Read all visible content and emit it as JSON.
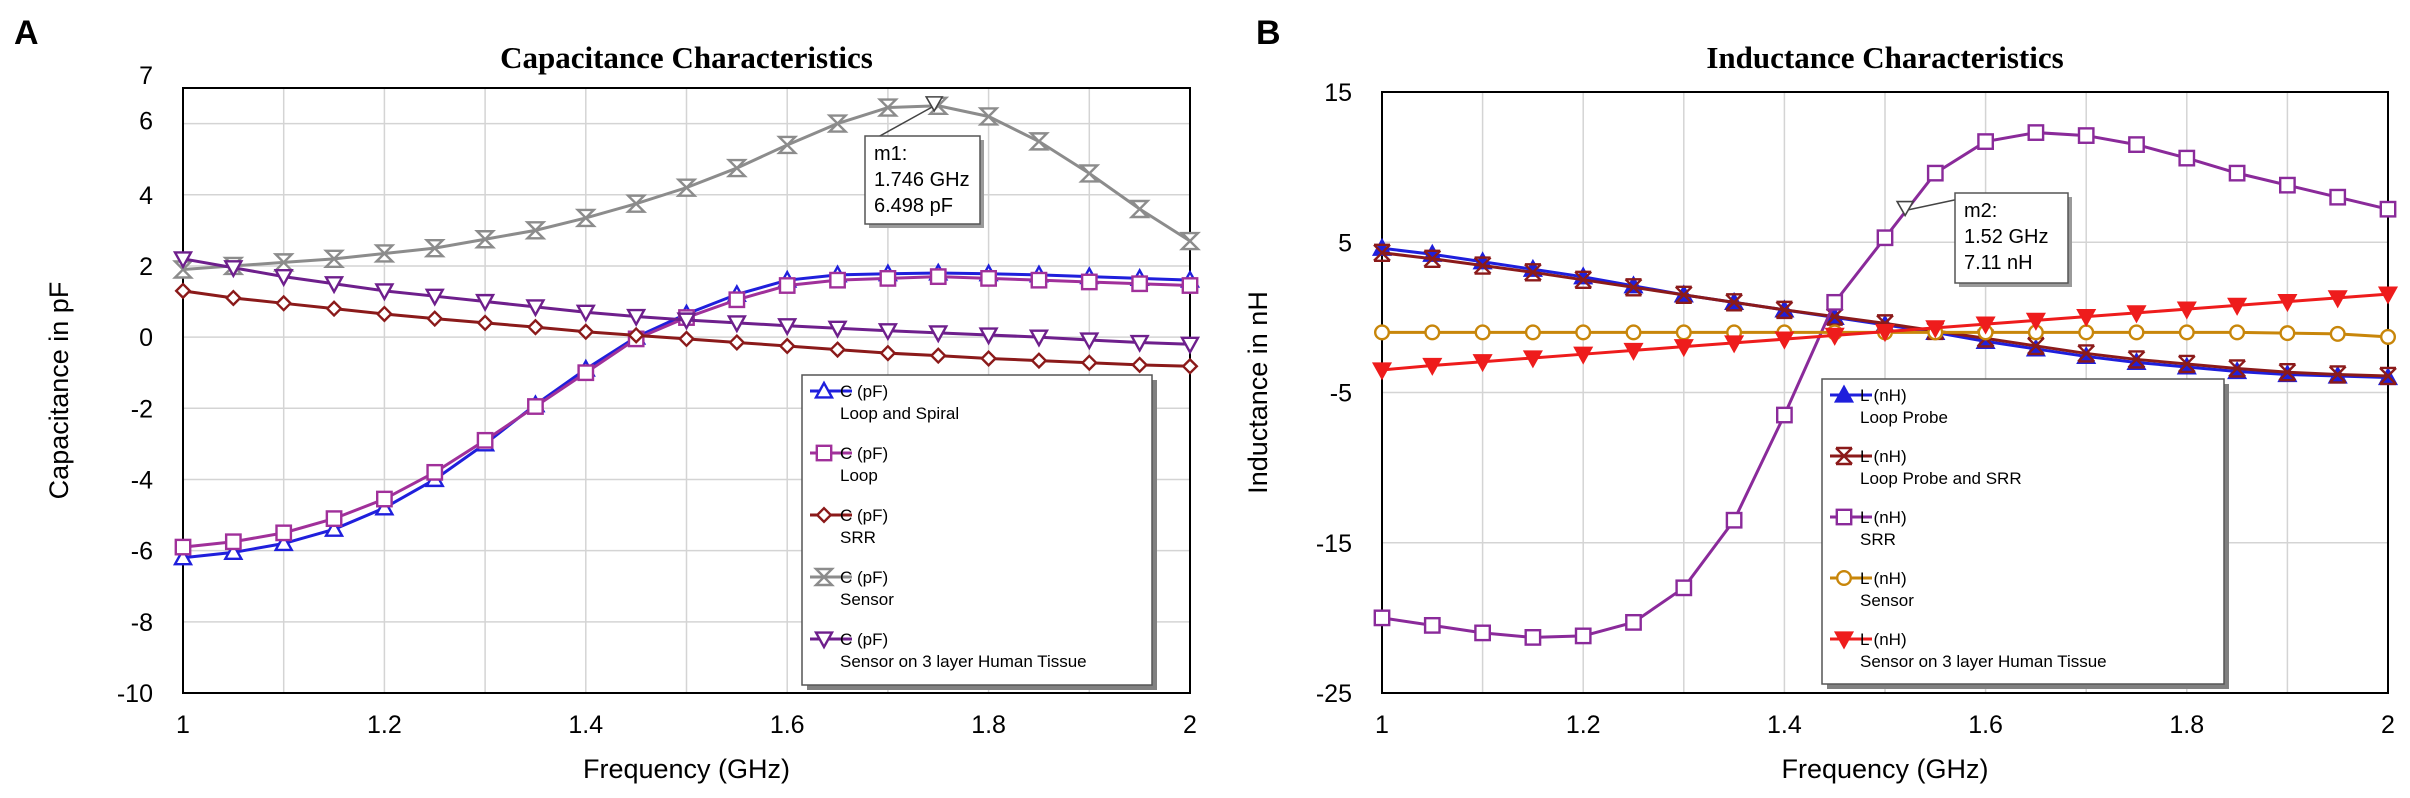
{
  "panels": [
    {
      "letter": "A"
    },
    {
      "letter": "B"
    }
  ],
  "chart_data": [
    {
      "type": "line",
      "title": "Capacitance Characteristics",
      "xlabel": "Frequency (GHz)",
      "ylabel": "Capacitance in pF",
      "xlim": [
        1,
        2
      ],
      "ylim": [
        -10,
        7
      ],
      "xticks": [
        1,
        1.2,
        1.4,
        1.6,
        1.8,
        2
      ],
      "xtick_labels": [
        "1",
        "1.2",
        "1.4",
        "1.6",
        "1.8",
        "2"
      ],
      "yticks": [
        -10,
        -8,
        -6,
        -4,
        -2,
        0,
        2,
        4,
        6,
        7
      ],
      "ytick_labels": [
        "-10",
        "-8",
        "-6",
        "-4",
        "-2",
        "0",
        "2",
        "4",
        "6",
        "7"
      ],
      "grid": true,
      "x": [
        1.0,
        1.05,
        1.1,
        1.15,
        1.2,
        1.25,
        1.3,
        1.35,
        1.4,
        1.45,
        1.5,
        1.55,
        1.6,
        1.65,
        1.7,
        1.75,
        1.8,
        1.85,
        1.9,
        1.95,
        2.0
      ],
      "series": [
        {
          "name": "C (pF)",
          "desc": "Loop and Spiral",
          "color": "#1f1fdc",
          "marker": "triangle-up",
          "filled": false,
          "values": [
            -6.2,
            -6.05,
            -5.8,
            -5.4,
            -4.8,
            -4.0,
            -3.0,
            -1.9,
            -0.9,
            0.0,
            0.65,
            1.2,
            1.6,
            1.75,
            1.78,
            1.8,
            1.78,
            1.75,
            1.7,
            1.65,
            1.6
          ]
        },
        {
          "name": "C (pF)",
          "desc": "Loop",
          "color": "#a0309a",
          "marker": "square",
          "filled": false,
          "values": [
            -5.9,
            -5.75,
            -5.5,
            -5.1,
            -4.55,
            -3.8,
            -2.9,
            -1.95,
            -1.0,
            -0.05,
            0.55,
            1.05,
            1.45,
            1.6,
            1.65,
            1.7,
            1.65,
            1.6,
            1.55,
            1.5,
            1.45
          ]
        },
        {
          "name": "C (pF)",
          "desc": "SRR",
          "color": "#8b1a1a",
          "marker": "diamond",
          "filled": false,
          "values": [
            1.3,
            1.1,
            0.95,
            0.8,
            0.65,
            0.52,
            0.4,
            0.28,
            0.15,
            0.05,
            -0.05,
            -0.15,
            -0.25,
            -0.35,
            -0.45,
            -0.52,
            -0.6,
            -0.66,
            -0.72,
            -0.78,
            -0.82
          ]
        },
        {
          "name": "C (pF)",
          "desc": "Sensor",
          "color": "#8c8c8c",
          "marker": "hourglass",
          "filled": false,
          "values": [
            1.9,
            2.0,
            2.1,
            2.2,
            2.35,
            2.5,
            2.75,
            3.0,
            3.35,
            3.75,
            4.2,
            4.75,
            5.4,
            6.0,
            6.45,
            6.5,
            6.2,
            5.5,
            4.6,
            3.6,
            2.7
          ]
        },
        {
          "name": "C (pF)",
          "desc": "Sensor on 3 layer Human Tissue",
          "color": "#6e1f8c",
          "marker": "triangle-down",
          "filled": false,
          "values": [
            2.2,
            1.95,
            1.7,
            1.5,
            1.3,
            1.15,
            1.0,
            0.85,
            0.7,
            0.58,
            0.48,
            0.4,
            0.32,
            0.25,
            0.18,
            0.12,
            0.06,
            0.0,
            -0.08,
            -0.15,
            -0.2
          ]
        }
      ],
      "annotation": {
        "name": "m1:",
        "x_text": "1.746 GHz",
        "y_text": "6.498 pF",
        "x": 1.746,
        "y": 6.498
      }
    },
    {
      "type": "line",
      "title": "Inductance Characteristics",
      "xlabel": "Frequency (GHz)",
      "ylabel": "Inductance in nH",
      "xlim": [
        1,
        2
      ],
      "ylim": [
        -25,
        15
      ],
      "xticks": [
        1,
        1.2,
        1.4,
        1.6,
        1.8,
        2
      ],
      "xtick_labels": [
        "1",
        "1.2",
        "1.4",
        "1.6",
        "1.8",
        "2"
      ],
      "yticks": [
        -25,
        -15,
        -5,
        5,
        15
      ],
      "ytick_labels": [
        "-25",
        "-15",
        "-5",
        "5",
        "15"
      ],
      "grid": true,
      "x": [
        1.0,
        1.05,
        1.1,
        1.15,
        1.2,
        1.25,
        1.3,
        1.35,
        1.4,
        1.45,
        1.5,
        1.55,
        1.6,
        1.65,
        1.7,
        1.75,
        1.8,
        1.85,
        1.9,
        1.95,
        2.0
      ],
      "series": [
        {
          "name": "L (nH)",
          "desc": "Loop Probe",
          "color": "#1f1fdc",
          "marker": "triangle-up",
          "filled": true,
          "values": [
            4.6,
            4.2,
            3.7,
            3.2,
            2.7,
            2.1,
            1.5,
            1.0,
            0.5,
            0.0,
            -0.5,
            -1.0,
            -1.6,
            -2.1,
            -2.6,
            -3.0,
            -3.3,
            -3.6,
            -3.8,
            -3.9,
            -4.0
          ]
        },
        {
          "name": "L (nH)",
          "desc": "Loop Probe and SRR",
          "color": "#8b1a1a",
          "marker": "x-mark",
          "filled": false,
          "values": [
            4.3,
            3.9,
            3.45,
            3.0,
            2.5,
            2.0,
            1.5,
            1.0,
            0.5,
            0.05,
            -0.4,
            -0.9,
            -1.4,
            -1.9,
            -2.4,
            -2.8,
            -3.1,
            -3.4,
            -3.65,
            -3.8,
            -3.9
          ]
        },
        {
          "name": "L (nH)",
          "desc": "SRR",
          "color": "#8a2a9a",
          "marker": "square",
          "filled": false,
          "values": [
            -20.0,
            -20.5,
            -21.0,
            -21.3,
            -21.2,
            -20.3,
            -18.0,
            -13.5,
            -6.5,
            1.0,
            5.3,
            9.6,
            11.7,
            12.3,
            12.1,
            11.5,
            10.6,
            9.6,
            8.8,
            8.0,
            7.2
          ]
        },
        {
          "name": "L (nH)",
          "desc": "Sensor",
          "color": "#c8860a",
          "marker": "circle",
          "filled": false,
          "values": [
            -1.0,
            -1.0,
            -1.0,
            -1.0,
            -1.0,
            -1.0,
            -1.0,
            -1.0,
            -1.0,
            -1.0,
            -1.0,
            -1.0,
            -1.0,
            -1.0,
            -1.0,
            -1.0,
            -1.0,
            -1.0,
            -1.05,
            -1.1,
            -1.3
          ]
        },
        {
          "name": "L (nH)",
          "desc": "Sensor on 3 layer Human Tissue",
          "color": "#ee1c1c",
          "marker": "triangle-down",
          "filled": true,
          "values": [
            -3.5,
            -3.2,
            -2.95,
            -2.7,
            -2.45,
            -2.2,
            -1.95,
            -1.7,
            -1.45,
            -1.2,
            -0.95,
            -0.7,
            -0.45,
            -0.2,
            0.05,
            0.3,
            0.55,
            0.8,
            1.05,
            1.3,
            1.55
          ]
        }
      ],
      "annotation": {
        "name": "m2:",
        "x_text": "1.52 GHz",
        "y_text": "7.11 nH",
        "x": 1.52,
        "y": 7.11
      }
    }
  ]
}
